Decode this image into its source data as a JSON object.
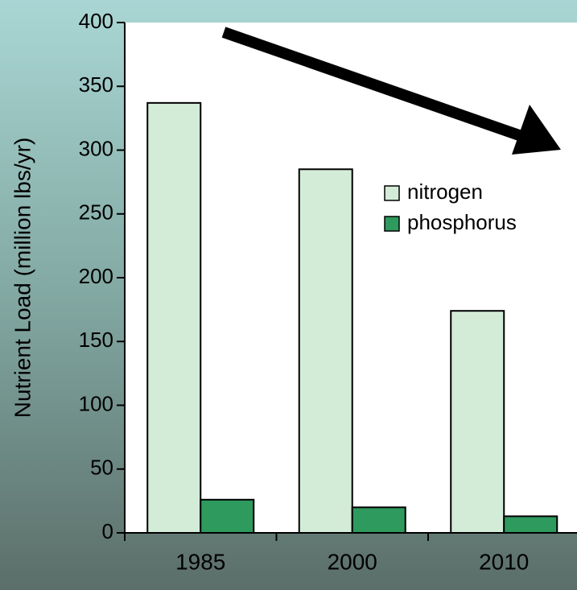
{
  "chart_data": {
    "type": "bar",
    "y_label": "Nutrient Load (million lbs/yr)",
    "categories": [
      "1985",
      "2000",
      "2010"
    ],
    "series": [
      {
        "name": "nitrogen",
        "color": "#d3ecd8",
        "values": [
          337,
          285,
          174
        ]
      },
      {
        "name": "phosphorus",
        "color": "#2e9a5e",
        "values": [
          26,
          20,
          13
        ]
      }
    ],
    "ylim": [
      0,
      400
    ],
    "yticks": [
      0,
      50,
      100,
      150,
      200,
      250,
      300,
      350,
      400
    ],
    "grid": false,
    "legend": "right"
  }
}
